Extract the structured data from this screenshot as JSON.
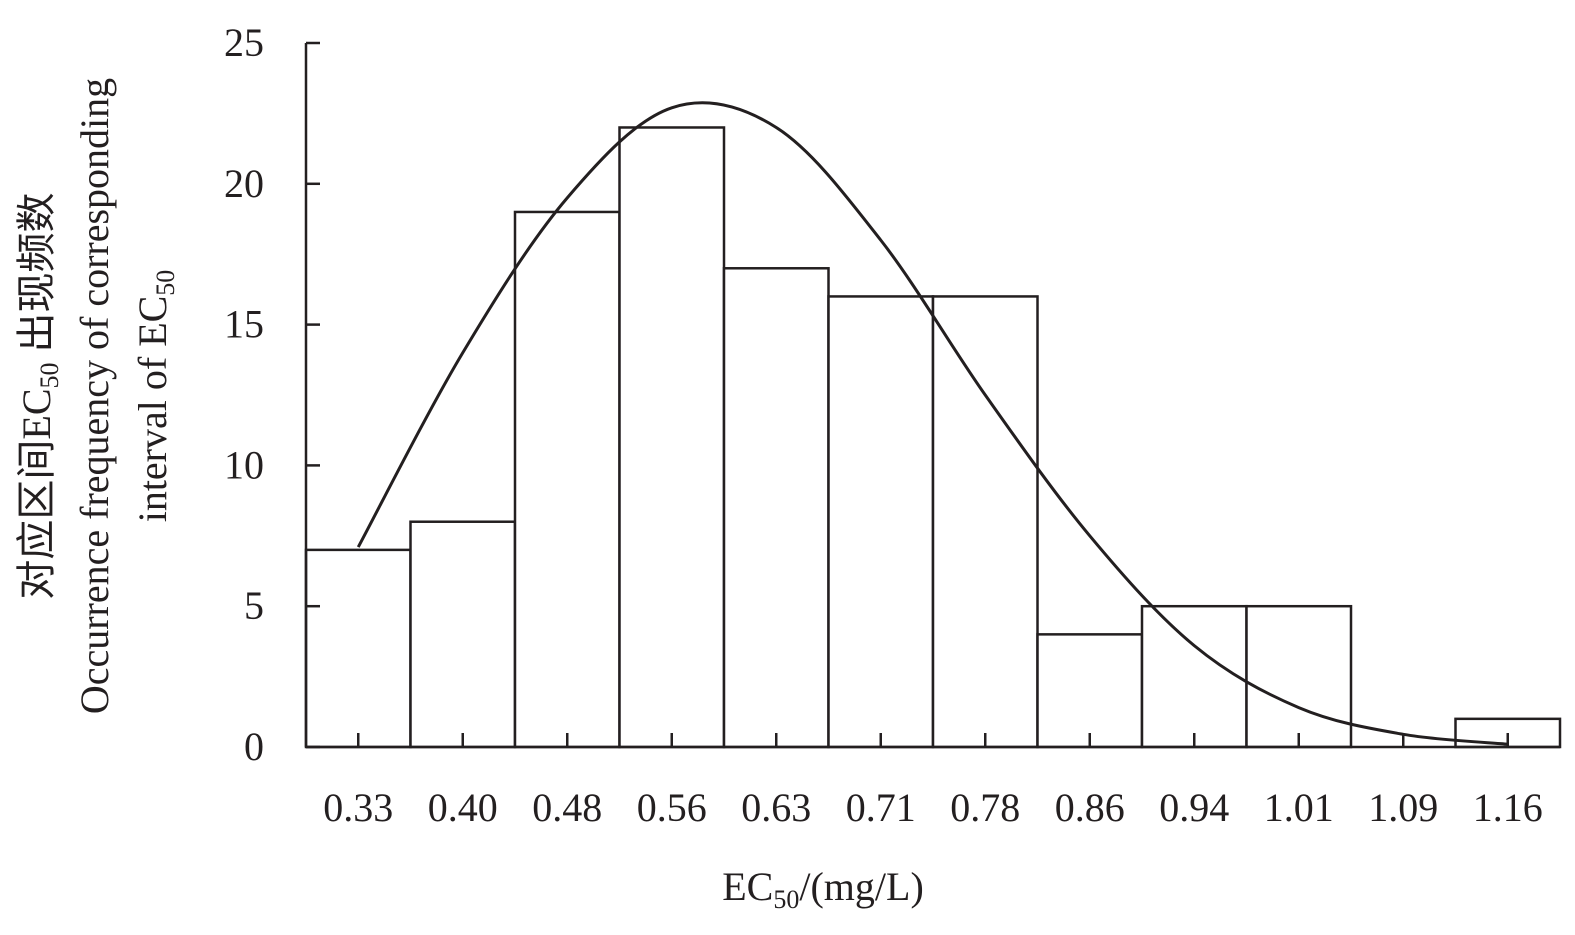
{
  "chart_data": {
    "type": "bar",
    "categories": [
      "0.33",
      "0.40",
      "0.48",
      "0.56",
      "0.63",
      "0.71",
      "0.78",
      "0.86",
      "0.94",
      "1.01",
      "1.09",
      "1.16"
    ],
    "values": [
      7,
      8,
      19,
      22,
      17,
      16,
      16,
      4,
      5,
      5,
      0,
      1
    ],
    "fit_curve": {
      "type": "line",
      "x": [
        0.33,
        0.4,
        0.48,
        0.56,
        0.63,
        0.71,
        0.78,
        0.86,
        0.94,
        1.01,
        1.09,
        1.16
      ],
      "values": [
        7.1,
        14.0,
        19.5,
        22.7,
        22.0,
        18.0,
        12.5,
        7.5,
        3.6,
        1.4,
        0.45,
        0.1
      ]
    },
    "ylim": [
      0,
      25
    ],
    "yticks": [
      0,
      5,
      10,
      15,
      20,
      25
    ],
    "xlabel": {
      "main": "EC",
      "sub": "50",
      "rest": "/(mg/L)"
    },
    "ylabel": {
      "line1_prefix": "对应区间EC",
      "line1_sub": "50",
      "line1_suffix": " 出现频数",
      "line2": "Occurrence frequency of corresponding",
      "line3_prefix": "interval of EC",
      "line3_sub": "50"
    },
    "grid": false,
    "legend": "none"
  }
}
